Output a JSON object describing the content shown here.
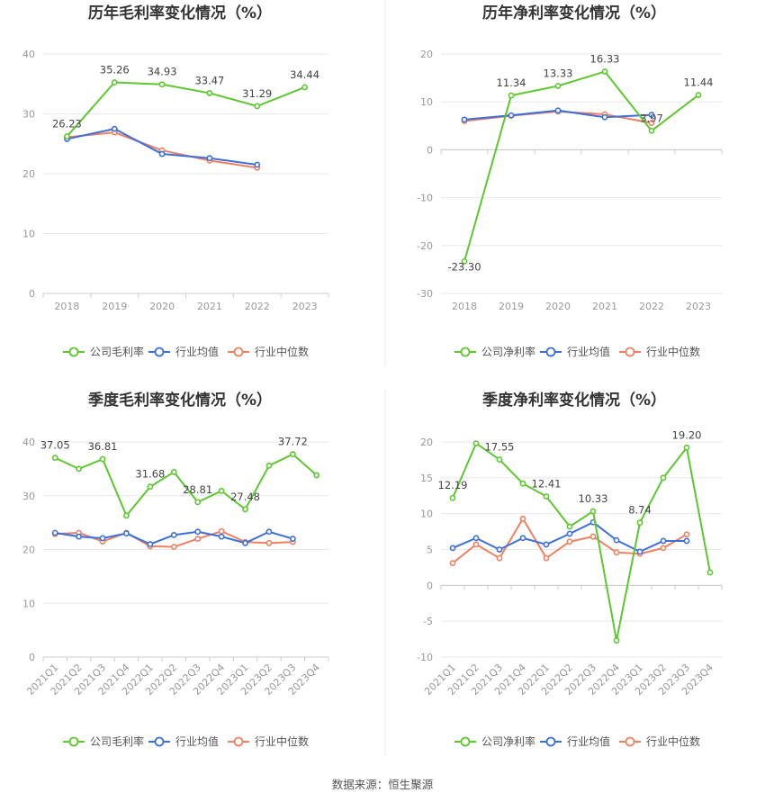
{
  "source_text": "数据来源：恒生聚源",
  "legend_labels": {
    "gross": [
      "公司毛利率",
      "行业均值",
      "行业中位数"
    ],
    "net": [
      "公司净利率",
      "行业均值",
      "行业中位数"
    ]
  },
  "colors": {
    "company": "#5cc72e",
    "mean": "#3c6fdc",
    "median": "#f08060",
    "grid": "#e8e8e8",
    "axis": "#cccccc",
    "divider": "#eeeeee"
  },
  "chart_data": [
    {
      "id": "annual-gross",
      "type": "line",
      "title": "历年毛利率变化情况（%）",
      "categories": [
        "2018",
        "2019",
        "2020",
        "2021",
        "2022",
        "2023"
      ],
      "ylim": [
        0,
        40
      ],
      "yticks": [
        0,
        10,
        20,
        30,
        40
      ],
      "grid": true,
      "legend": "bottom",
      "series": [
        {
          "name": "公司毛利率",
          "role": "company",
          "values": [
            26.23,
            35.26,
            34.93,
            33.47,
            31.29,
            34.44
          ]
        },
        {
          "name": "行业均值",
          "role": "mean",
          "values": [
            25.8,
            27.5,
            23.3,
            22.6,
            21.5,
            null
          ]
        },
        {
          "name": "行业中位数",
          "role": "median",
          "values": [
            26.1,
            26.9,
            23.9,
            22.2,
            21.0,
            null
          ]
        }
      ],
      "data_labels": [
        "26.23",
        "35.26",
        "34.93",
        "33.47",
        "31.29",
        "34.44"
      ]
    },
    {
      "id": "annual-net",
      "type": "line",
      "title": "历年净利率变化情况（%）",
      "categories": [
        "2018",
        "2019",
        "2020",
        "2021",
        "2022",
        "2023"
      ],
      "ylim": [
        -30,
        20
      ],
      "yticks": [
        -30,
        -20,
        -10,
        0,
        10,
        20
      ],
      "grid": true,
      "legend": "bottom",
      "series": [
        {
          "name": "公司净利率",
          "role": "company",
          "values": [
            -23.3,
            11.34,
            13.33,
            16.33,
            3.97,
            11.44
          ]
        },
        {
          "name": "行业均值",
          "role": "mean",
          "values": [
            6.3,
            7.2,
            8.2,
            6.8,
            7.3,
            null
          ]
        },
        {
          "name": "行业中位数",
          "role": "median",
          "values": [
            6.0,
            7.1,
            8.0,
            7.4,
            5.6,
            null
          ]
        }
      ],
      "data_labels": [
        "-23.30",
        "11.34",
        "13.33",
        "16.33",
        "3.97",
        "11.44"
      ]
    },
    {
      "id": "quarterly-gross",
      "type": "line",
      "title": "季度毛利率变化情况（%）",
      "categories": [
        "2021Q1",
        "2021Q2",
        "2021Q3",
        "2021Q4",
        "2022Q1",
        "2022Q2",
        "2022Q3",
        "2022Q4",
        "2023Q1",
        "2023Q2",
        "2023Q3",
        "2023Q4"
      ],
      "ylim": [
        0,
        40
      ],
      "yticks": [
        0,
        10,
        20,
        30,
        40
      ],
      "grid": true,
      "legend": "bottom",
      "series": [
        {
          "name": "公司毛利率",
          "role": "company",
          "values": [
            37.05,
            35.0,
            36.81,
            26.3,
            31.68,
            34.4,
            28.81,
            30.9,
            27.48,
            35.6,
            37.72,
            33.8
          ]
        },
        {
          "name": "行业均值",
          "role": "mean",
          "values": [
            23.1,
            22.4,
            22.1,
            23.0,
            21.0,
            22.7,
            23.3,
            22.4,
            21.2,
            23.3,
            22.0,
            null
          ]
        },
        {
          "name": "行业中位数",
          "role": "median",
          "values": [
            22.9,
            23.1,
            21.5,
            23.1,
            20.6,
            20.5,
            22.0,
            23.4,
            21.4,
            21.2,
            21.4,
            null
          ]
        }
      ],
      "data_labels": [
        "37.05",
        "",
        "36.81",
        "",
        "31.68",
        "",
        "28.81",
        "",
        "27.48",
        "",
        "37.72",
        ""
      ]
    },
    {
      "id": "quarterly-net",
      "type": "line",
      "title": "季度净利率变化情况（%）",
      "categories": [
        "2021Q1",
        "2021Q2",
        "2021Q3",
        "2021Q4",
        "2022Q1",
        "2022Q2",
        "2022Q3",
        "2022Q4",
        "2023Q1",
        "2023Q2",
        "2023Q3",
        "2023Q4"
      ],
      "ylim": [
        -10,
        20
      ],
      "yticks": [
        -10,
        -5,
        0,
        5,
        10,
        15,
        20
      ],
      "grid": true,
      "legend": "bottom",
      "series": [
        {
          "name": "公司净利率",
          "role": "company",
          "values": [
            12.19,
            19.8,
            17.55,
            14.2,
            12.41,
            8.2,
            10.33,
            -7.7,
            8.74,
            15.0,
            19.2,
            1.8
          ]
        },
        {
          "name": "行业均值",
          "role": "mean",
          "values": [
            5.2,
            6.6,
            5.0,
            6.6,
            5.7,
            7.2,
            8.8,
            6.3,
            4.7,
            6.2,
            6.2,
            null
          ]
        },
        {
          "name": "行业中位数",
          "role": "median",
          "values": [
            3.1,
            5.7,
            3.8,
            9.3,
            3.8,
            6.1,
            6.8,
            4.6,
            4.4,
            5.2,
            7.1,
            null
          ]
        }
      ],
      "data_labels": [
        "12.19",
        "",
        "17.55",
        "",
        "12.41",
        "",
        "10.33",
        "",
        "8.74",
        "",
        "19.20",
        ""
      ]
    }
  ]
}
